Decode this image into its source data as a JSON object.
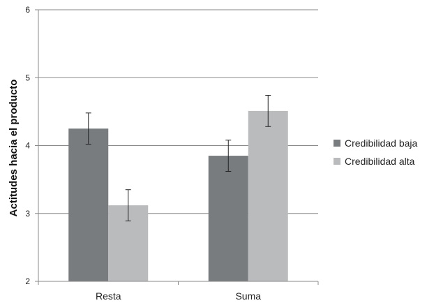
{
  "chart_data": {
    "type": "bar",
    "title": "",
    "xlabel": "",
    "ylabel": "Actitudes hacia el producto",
    "ylim": [
      2,
      6
    ],
    "yticks": [
      2,
      3,
      4,
      5,
      6
    ],
    "grid": true,
    "legend_position": "right",
    "categories": [
      "Resta",
      "Suma"
    ],
    "series": [
      {
        "name": "Credibilidad baja",
        "color": "#787c7f",
        "values": [
          4.25,
          3.85
        ],
        "error": [
          0.23,
          0.23
        ]
      },
      {
        "name": "Credibilidad alta",
        "color": "#babbbd",
        "values": [
          3.12,
          4.51
        ],
        "error": [
          0.23,
          0.23
        ]
      }
    ]
  }
}
